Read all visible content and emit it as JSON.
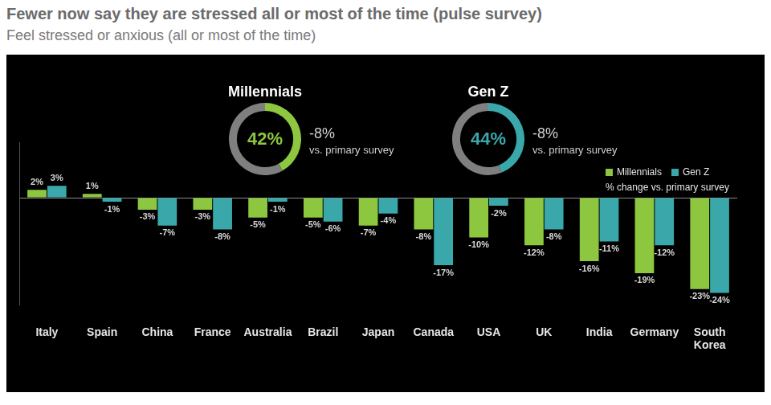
{
  "chart_data": [
    {
      "type": "bar",
      "title": "Fewer now say they are stressed all or most of the time (pulse survey)",
      "subtitle": "Feel stressed or anxious (all or most of the time)",
      "categories": [
        "Italy",
        "Spain",
        "China",
        "France",
        "Australia",
        "Brazil",
        "Japan",
        "Canada",
        "USA",
        "UK",
        "India",
        "Germany",
        "South Korea"
      ],
      "series": [
        {
          "name": "Millennials",
          "color": "#8dc63f",
          "values": [
            2,
            1,
            -3,
            -3,
            -5,
            -5,
            -7,
            -8,
            -10,
            -12,
            -16,
            -19,
            -23
          ],
          "value_labels": [
            "2%",
            "1%",
            "-3%",
            "-3%",
            "-5%",
            "-5%",
            "-7%",
            "-8%",
            "-10%",
            "-12%",
            "-16%",
            "-19%",
            "-23%"
          ]
        },
        {
          "name": "Gen Z",
          "color": "#3aa8aa",
          "values": [
            3,
            -1,
            -7,
            -8,
            -1,
            -6,
            -4,
            -17,
            -2,
            -8,
            -11,
            -12,
            -24
          ],
          "value_labels": [
            "3%",
            "-1%",
            "-7%",
            "-8%",
            "-1%",
            "-6%",
            "-4%",
            "-17%",
            "-2%",
            "-8%",
            "-11%",
            "-12%",
            "-24%"
          ]
        }
      ],
      "annotations": [
        "% change vs. primary survey"
      ],
      "ylim": [
        -27,
        14
      ],
      "yticks": [
        0
      ],
      "grid": true,
      "legend": "upper right",
      "data_labels": true,
      "tick_labels": "x"
    },
    {
      "type": "doughnut",
      "title": "Millennials",
      "categories": [
        null,
        null
      ],
      "values": [
        42,
        58
      ],
      "value_labels": [
        "42%",
        null
      ],
      "colors": [
        "#8dc63f",
        "#7f7f7f"
      ],
      "data_labels": true,
      "change": -8,
      "change_label": "-8%",
      "change_text": "vs. primary survey"
    },
    {
      "type": "doughnut",
      "title": "Gen Z",
      "categories": [
        null,
        null
      ],
      "values": [
        44,
        56
      ],
      "value_labels": [
        "44%",
        null
      ],
      "colors": [
        "#3aa8aa",
        "#7f7f7f"
      ],
      "data_labels": true,
      "change": -8,
      "change_label": "-8%",
      "change_text": "vs. primary survey"
    }
  ]
}
